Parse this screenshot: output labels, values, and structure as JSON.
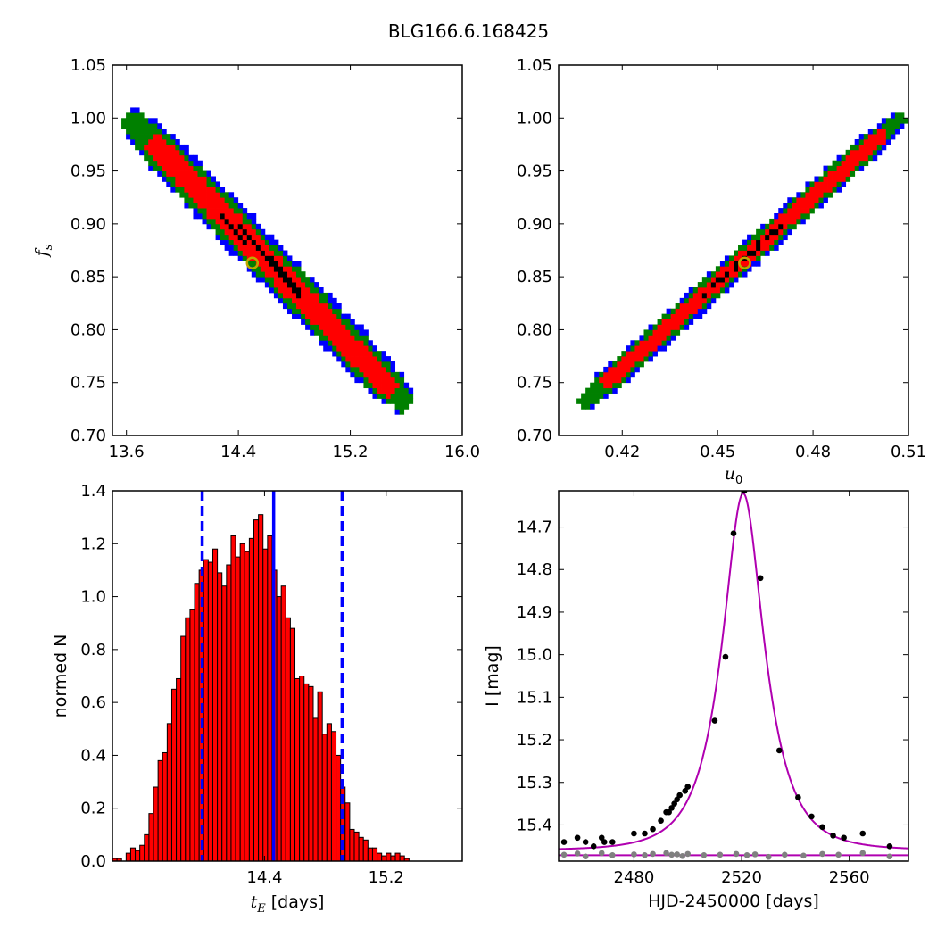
{
  "figure": {
    "title": "BLG166.6.168425"
  },
  "chart_data": [
    {
      "id": "tE_fs",
      "type": "heatmap",
      "title": "",
      "xlabel": "",
      "ylabel": "f_s",
      "xlim": [
        13.5,
        16.0
      ],
      "ylim": [
        0.7,
        1.05
      ],
      "xticks": [
        13.6,
        14.4,
        15.2,
        16.0
      ],
      "xtick_labels": [
        "13.6",
        "14.4",
        "15.2",
        "16.0"
      ],
      "yticks": [
        0.7,
        0.75,
        0.8,
        0.85,
        0.9,
        0.95,
        1.0,
        1.05
      ],
      "ytick_labels": [
        "0.70",
        "0.75",
        "0.80",
        "0.85",
        "0.90",
        "0.95",
        "1.00",
        "1.05"
      ],
      "confidence_colors": [
        "#0000ff",
        "#008000",
        "#ff0000",
        "#000000"
      ],
      "ridge": {
        "x_start": 13.62,
        "y_start": 1.0,
        "x_end": 15.6,
        "y_end": 0.73
      },
      "best_fit": {
        "x": 14.5,
        "y": 0.863
      },
      "marker_color": "#bfa800"
    },
    {
      "id": "u0_fs",
      "type": "heatmap",
      "title": "",
      "xlabel": "u_0",
      "ylabel": "",
      "xlim": [
        0.4,
        0.51
      ],
      "ylim": [
        0.7,
        1.05
      ],
      "xticks": [
        0.42,
        0.45,
        0.48,
        0.51
      ],
      "xtick_labels": [
        "0.42",
        "0.45",
        "0.48",
        "0.51"
      ],
      "yticks": [
        0.7,
        0.75,
        0.8,
        0.85,
        0.9,
        0.95,
        1.0,
        1.05
      ],
      "ytick_labels": [
        "0.70",
        "0.75",
        "0.80",
        "0.85",
        "0.90",
        "0.95",
        "1.00",
        "1.05"
      ],
      "confidence_colors": [
        "#0000ff",
        "#008000",
        "#ff0000",
        "#000000"
      ],
      "ridge": {
        "x_start": 0.4075,
        "y_start": 0.73,
        "x_end": 0.5075,
        "y_end": 1.0
      },
      "best_fit": {
        "x": 0.4585,
        "y": 0.863
      },
      "marker_color": "#bfa800"
    },
    {
      "id": "tE_hist",
      "type": "bar",
      "title": "",
      "xlabel": "t_E [days]",
      "ylabel": "normed N",
      "xlim": [
        13.4,
        15.7
      ],
      "ylim": [
        0.0,
        1.4
      ],
      "xticks": [
        14.4,
        15.2
      ],
      "xtick_labels": [
        "14.4",
        "15.2"
      ],
      "yticks": [
        0.0,
        0.2,
        0.4,
        0.6,
        0.8,
        1.0,
        1.2,
        1.4
      ],
      "ytick_labels": [
        "0.0",
        "0.2",
        "0.4",
        "0.6",
        "0.8",
        "1.0",
        "1.2",
        "1.4"
      ],
      "bin_start": 13.4,
      "bin_width": 0.03,
      "values": [
        0.01,
        0.01,
        0.0,
        0.03,
        0.05,
        0.04,
        0.06,
        0.1,
        0.18,
        0.28,
        0.38,
        0.41,
        0.52,
        0.65,
        0.69,
        0.85,
        0.92,
        0.95,
        1.05,
        1.1,
        1.14,
        1.13,
        1.18,
        1.09,
        1.04,
        1.12,
        1.23,
        1.15,
        1.2,
        1.17,
        1.22,
        1.29,
        1.31,
        1.18,
        1.23,
        1.1,
        1.0,
        1.04,
        0.92,
        0.88,
        0.69,
        0.7,
        0.67,
        0.66,
        0.54,
        0.64,
        0.48,
        0.52,
        0.49,
        0.4,
        0.28,
        0.22,
        0.12,
        0.11,
        0.09,
        0.08,
        0.05,
        0.05,
        0.03,
        0.02,
        0.03,
        0.02,
        0.03,
        0.02,
        0.01
      ],
      "bar_color": "#ff0000",
      "median": 14.46,
      "interval": [
        13.99,
        14.91
      ],
      "line_color": "#0000ff"
    },
    {
      "id": "lightcurve",
      "type": "scatter",
      "title": "",
      "xlabel": "HJD-2450000 [days]",
      "ylabel": "I [mag]",
      "xlim": [
        2452,
        2582
      ],
      "ylim": [
        15.485,
        14.615
      ],
      "xticks": [
        2480,
        2520,
        2560
      ],
      "xtick_labels": [
        "2480",
        "2520",
        "2560"
      ],
      "yticks": [
        14.7,
        14.8,
        14.9,
        15.0,
        15.1,
        15.2,
        15.3,
        15.4
      ],
      "ytick_labels": [
        "14.7",
        "14.8",
        "14.9",
        "15.0",
        "15.1",
        "15.2",
        "15.3",
        "15.4"
      ],
      "model": {
        "t0": 2520.6,
        "tE": 14.46,
        "u0": 0.4585,
        "fs": 0.863,
        "baseline_mag": 15.4596,
        "color": "#b000b0"
      },
      "residual_line": {
        "y": 15.471,
        "color": "#b000b0"
      },
      "data_points": {
        "x": [
          2454,
          2459,
          2462,
          2465,
          2468,
          2469,
          2472,
          2480,
          2484,
          2487,
          2490,
          2492,
          2493,
          2494,
          2495,
          2496,
          2497,
          2499,
          2500,
          2510,
          2514,
          2517,
          2521,
          2527,
          2534,
          2541,
          2546,
          2550,
          2554,
          2558,
          2565,
          2575
        ],
        "y": [
          15.44,
          15.43,
          15.44,
          15.45,
          15.43,
          15.44,
          15.44,
          15.42,
          15.42,
          15.41,
          15.39,
          15.37,
          15.37,
          15.36,
          15.35,
          15.34,
          15.33,
          15.32,
          15.31,
          15.155,
          15.005,
          14.715,
          14.615,
          14.82,
          15.225,
          15.335,
          15.38,
          15.405,
          15.425,
          15.43,
          15.42,
          15.45
        ],
        "color": "#000000"
      },
      "residual_points": {
        "x": [
          2454,
          2459,
          2462,
          2468,
          2472,
          2480,
          2484,
          2487,
          2492,
          2494,
          2496,
          2498,
          2500,
          2506,
          2512,
          2518,
          2522,
          2525,
          2530,
          2536,
          2543,
          2550,
          2556,
          2565,
          2575
        ],
        "y": [
          15.47,
          15.467,
          15.474,
          15.466,
          15.471,
          15.469,
          15.471,
          15.468,
          15.466,
          15.47,
          15.469,
          15.473,
          15.468,
          15.471,
          15.47,
          15.468,
          15.471,
          15.469,
          15.475,
          15.47,
          15.472,
          15.468,
          15.47,
          15.466,
          15.474
        ],
        "color": "#808080"
      }
    }
  ]
}
